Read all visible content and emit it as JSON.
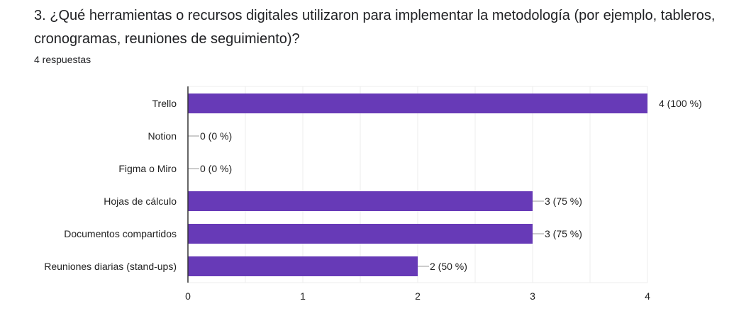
{
  "question": {
    "title": "3. ¿Qué herramientas o recursos digitales utilizaron para implementar la metodología (por ejemplo, tableros, cronogramas, reuniones de seguimiento)?",
    "responses": "4 respuestas"
  },
  "chart_data": {
    "type": "bar",
    "orientation": "horizontal",
    "categories": [
      "Trello",
      "Notion",
      "Figma o Miro",
      "Hojas de cálculo",
      "Documentos compartidos",
      "Reuniones diarias (stand-ups)"
    ],
    "values": [
      4,
      0,
      0,
      3,
      3,
      2
    ],
    "data_labels": [
      "4 (100 %)",
      "0 (0 %)",
      "0 (0 %)",
      "3 (75 %)",
      "3 (75 %)",
      "2 (50 %)"
    ],
    "xlim": [
      0,
      4
    ],
    "xticks": [
      "0",
      "1",
      "2",
      "3",
      "4"
    ],
    "grid": true,
    "bar_color": "#673ab7"
  }
}
